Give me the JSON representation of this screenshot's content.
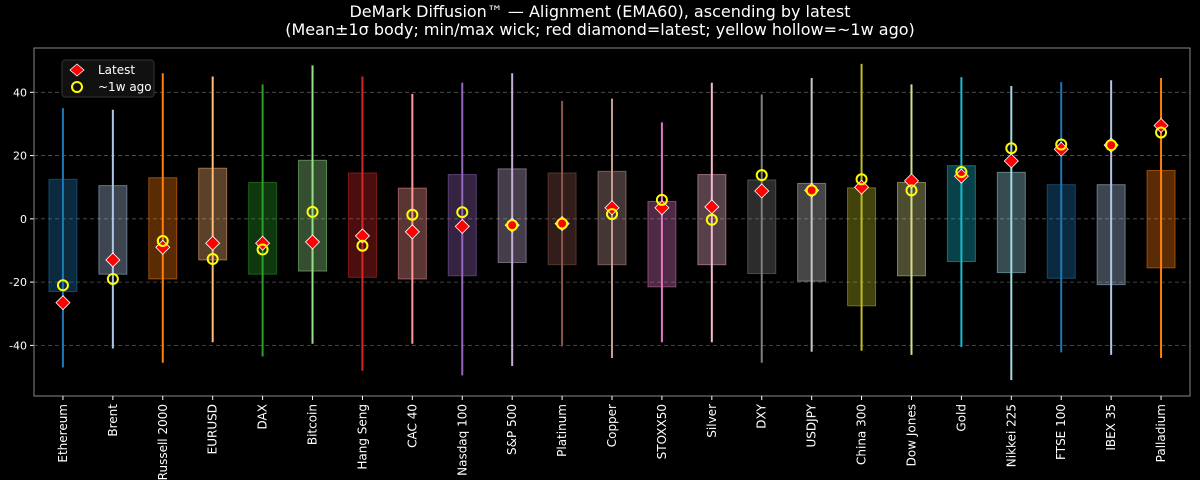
{
  "chart_data": {
    "type": "box",
    "title": "DeMark Diffusion™ — Alignment (EMA60), ascending by latest",
    "subtitle": "(Mean±1σ body; min/max wick; red diamond=latest; yellow hollow=~1w ago)",
    "xlabel": "",
    "ylabel": "",
    "ylim": [
      -56,
      54
    ],
    "yticks": [
      -40,
      -20,
      0,
      20,
      40
    ],
    "grid": true,
    "legend": {
      "placement": "top-left",
      "entries": [
        "Latest",
        "~1w ago"
      ]
    },
    "colors": {
      "latest": "#ff0000",
      "week_ago": "#ffff00",
      "background": "#000000",
      "grid": "#555555"
    },
    "categories": [
      "Ethereum",
      "Brent",
      "Russell 2000",
      "EURUSD",
      "DAX",
      "Bitcoin",
      "Hang Seng",
      "CAC 40",
      "Nasdaq 100",
      "S&P 500",
      "Platinum",
      "Copper",
      "STOXX50",
      "Silver",
      "DXY",
      "USDJPY",
      "China 300",
      "Dow Jones",
      "Gold",
      "Nikkei 225",
      "FTSE 100",
      "IBEX 35",
      "Palladium"
    ],
    "series_colors": [
      "#1f77b4",
      "#aec7e8",
      "#ff7f0e",
      "#ffbb78",
      "#2ca02c",
      "#98df8a",
      "#d62728",
      "#ff9896",
      "#9467bd",
      "#c5b0d5",
      "#8c564b",
      "#c49c94",
      "#e377c2",
      "#f7b6d2",
      "#7f7f7f",
      "#c7c7c7",
      "#bcbd22",
      "#dbdb8d",
      "#17becf",
      "#9edae5",
      "#1f77b4",
      "#aec7e8",
      "#ff7f0e"
    ],
    "max": [
      35,
      34.5,
      46,
      45,
      42.5,
      48.5,
      45,
      39.5,
      43,
      46,
      37.3,
      38,
      30.5,
      43,
      39.3,
      44.5,
      49,
      42.5,
      44.8,
      42,
      43.2,
      43.8,
      44.5
    ],
    "min": [
      -47,
      -41,
      -45.5,
      -39,
      -43.5,
      -39.5,
      -48,
      -39.5,
      -49.5,
      -46.5,
      -40.3,
      -44,
      -39,
      -39,
      -45.5,
      -42,
      -41.7,
      -43,
      -40.5,
      -51,
      -42.2,
      -43,
      -44
    ],
    "body_top": [
      12.5,
      10.5,
      13,
      16,
      11.5,
      18.5,
      14.5,
      9.7,
      14,
      15.8,
      14.5,
      15,
      5.5,
      14,
      12.3,
      11.2,
      9.8,
      11.5,
      16.8,
      14.7,
      10.8,
      10.8,
      15.3
    ],
    "body_bottom": [
      -23,
      -17.5,
      -19,
      -13,
      -17.5,
      -16.5,
      -18.5,
      -19,
      -18,
      -13.8,
      -14.5,
      -14.5,
      -21.5,
      -14.5,
      -17.3,
      -19.7,
      -27.5,
      -18,
      -13.5,
      -17,
      -18.8,
      -20.8,
      -15.5
    ],
    "latest": [
      -26.5,
      -13,
      -9,
      -7.7,
      -7.7,
      -7.3,
      -5.4,
      -4.1,
      -2.4,
      -2,
      -1.5,
      3.5,
      3.5,
      3.8,
      8.8,
      9,
      10,
      12,
      13.5,
      18.3,
      22,
      23.3,
      29.5
    ],
    "week_ago": [
      -21,
      -19,
      -7,
      -12.7,
      -9.7,
      2.2,
      -8.5,
      1.3,
      2.1,
      -2,
      -1.5,
      1.5,
      6,
      -0.3,
      13.8,
      9,
      12.5,
      9,
      14.8,
      22.3,
      23.5,
      23.3,
      27.3
    ]
  }
}
